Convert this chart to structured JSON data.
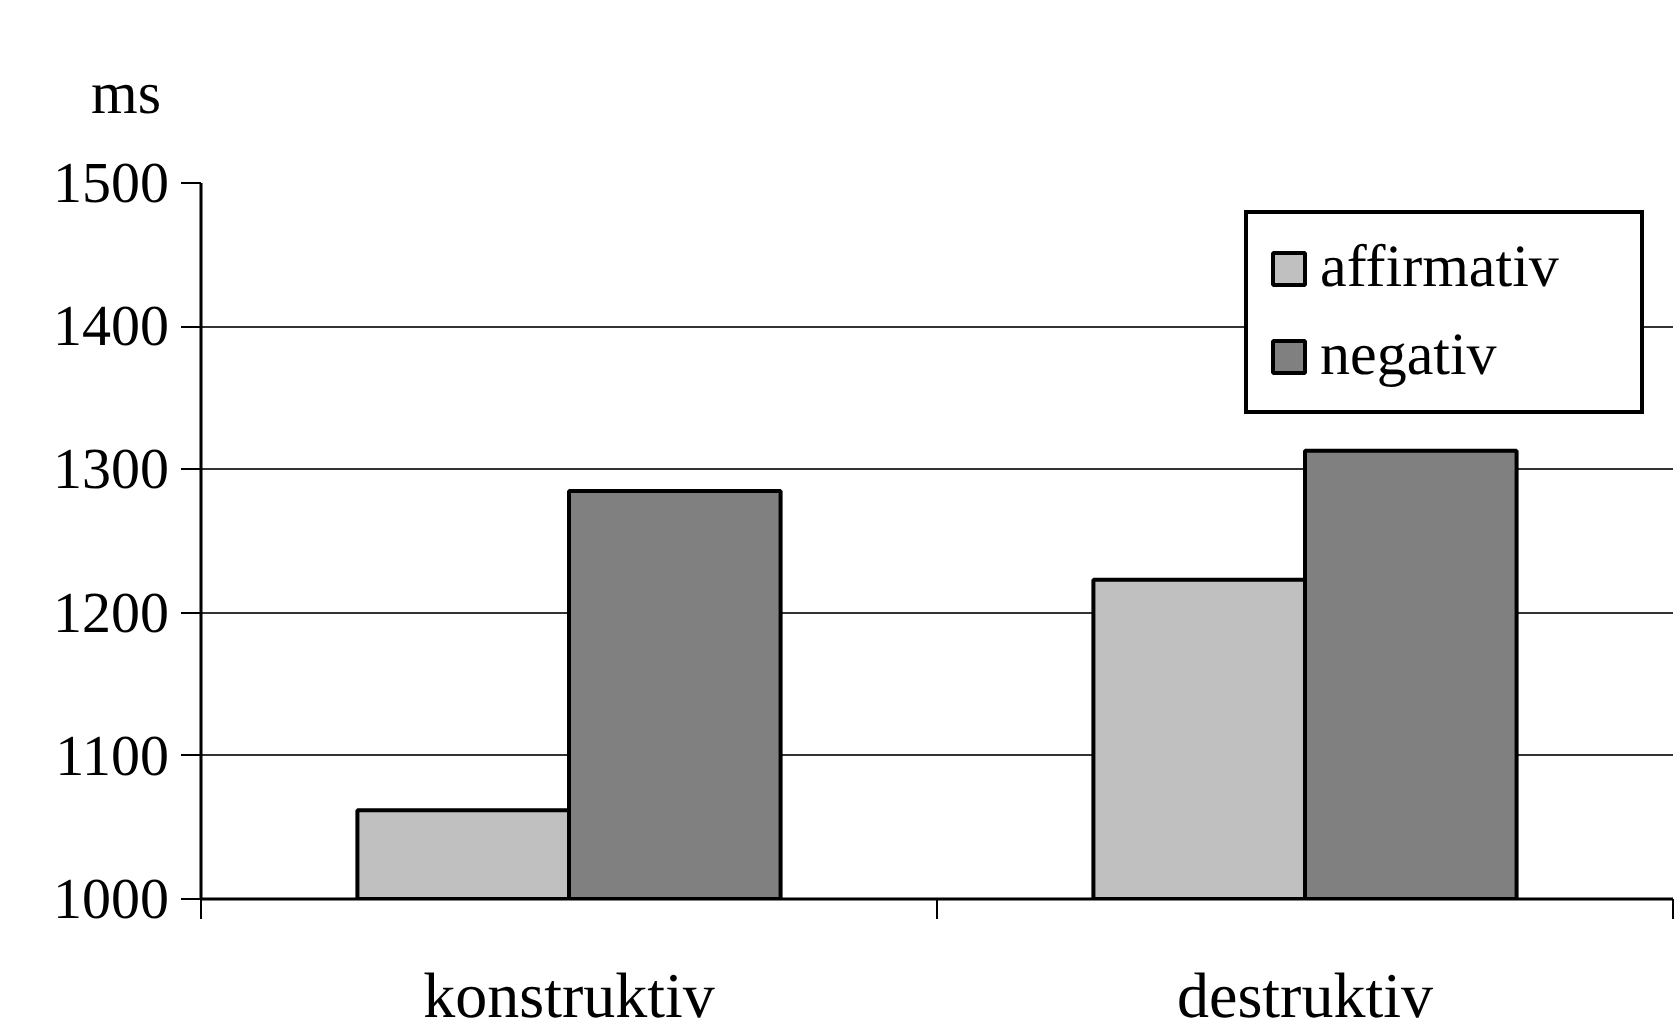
{
  "chart_data": {
    "type": "bar",
    "ylabel": "ms",
    "categories": [
      "konstruktiv",
      "destruktiv"
    ],
    "series": [
      {
        "name": "affirmativ",
        "color": "#c0c0c0",
        "values": [
          1062,
          1223
        ]
      },
      {
        "name": "negativ",
        "color": "#808080",
        "values": [
          1285,
          1313
        ]
      }
    ],
    "ylim": [
      1000,
      1500
    ],
    "yticks": [
      1000,
      1100,
      1200,
      1300,
      1400,
      1500
    ],
    "grid": "y",
    "legend": "top right"
  }
}
